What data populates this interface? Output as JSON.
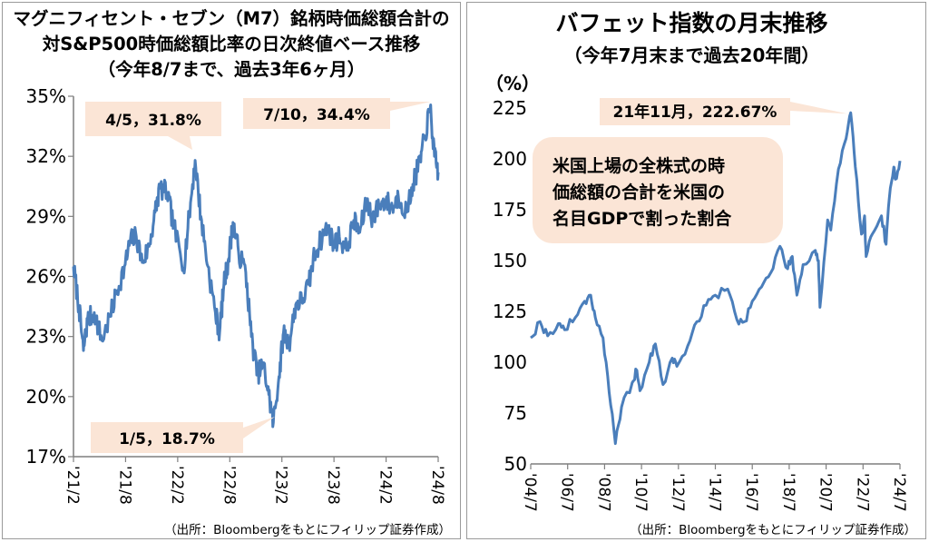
{
  "left": {
    "title_lines": [
      "マグニフィセント・セブン（M7）銘柄時価総額合計の",
      "対S&P500時価総額比率の日次終値ベース推移",
      "（今年8/7まで、過去3年6ヶ月）"
    ],
    "source": "（出所：Bloombergをもとにフィリップ証券作成）",
    "chart_data": {
      "type": "line",
      "title": "マグニフィセント・セブン（M7）銘柄時価総額合計の対S&P500時価総額比率の日次終値ベース推移",
      "subtitle": "（今年8/7まで、過去3年6ヶ月）",
      "y_unit": "%",
      "ylim": [
        17,
        35
      ],
      "yticks": [
        "35%",
        "32%",
        "29%",
        "26%",
        "23%",
        "20%",
        "17%"
      ],
      "ytick_values": [
        35,
        32,
        29,
        26,
        23,
        20,
        17
      ],
      "xticks": [
        "'21/2",
        "'21/8",
        "'22/2",
        "'22/8",
        "'23/2",
        "'23/8",
        "'24/2",
        "'24/8"
      ],
      "xlim": [
        "2021-02-01",
        "2024-08-07"
      ],
      "grid": false,
      "line_color": "#4a7ebb",
      "anchors": [
        {
          "x": "2021-02-01",
          "y": 26.5
        },
        {
          "x": "2021-02-20",
          "y": 24.5
        },
        {
          "x": "2021-03-08",
          "y": 22.3
        },
        {
          "x": "2021-03-22",
          "y": 23.8
        },
        {
          "x": "2021-04-15",
          "y": 24.2
        },
        {
          "x": "2021-05-12",
          "y": 22.8
        },
        {
          "x": "2021-06-10",
          "y": 24.0
        },
        {
          "x": "2021-07-05",
          "y": 25.3
        },
        {
          "x": "2021-08-02",
          "y": 26.6
        },
        {
          "x": "2021-08-20",
          "y": 27.8
        },
        {
          "x": "2021-09-10",
          "y": 28.0
        },
        {
          "x": "2021-10-01",
          "y": 26.7
        },
        {
          "x": "2021-10-25",
          "y": 27.5
        },
        {
          "x": "2021-11-15",
          "y": 29.2
        },
        {
          "x": "2021-12-01",
          "y": 30.4
        },
        {
          "x": "2021-12-27",
          "y": 30.2
        },
        {
          "x": "2022-01-20",
          "y": 28.5
        },
        {
          "x": "2022-02-23",
          "y": 26.4
        },
        {
          "x": "2022-03-15",
          "y": 29.0
        },
        {
          "x": "2022-04-05",
          "y": 31.8
        },
        {
          "x": "2022-04-25",
          "y": 29.0
        },
        {
          "x": "2022-05-20",
          "y": 26.5
        },
        {
          "x": "2022-06-15",
          "y": 24.2
        },
        {
          "x": "2022-06-30",
          "y": 23.2
        },
        {
          "x": "2022-07-15",
          "y": 25.6
        },
        {
          "x": "2022-08-01",
          "y": 26.9
        },
        {
          "x": "2022-08-16",
          "y": 28.7
        },
        {
          "x": "2022-09-05",
          "y": 27.2
        },
        {
          "x": "2022-09-30",
          "y": 26.2
        },
        {
          "x": "2022-10-20",
          "y": 23.0
        },
        {
          "x": "2022-11-10",
          "y": 21.1
        },
        {
          "x": "2022-12-01",
          "y": 21.6
        },
        {
          "x": "2022-12-20",
          "y": 20.1
        },
        {
          "x": "2023-01-05",
          "y": 18.7
        },
        {
          "x": "2023-01-25",
          "y": 21.0
        },
        {
          "x": "2023-02-10",
          "y": 23.2
        },
        {
          "x": "2023-03-01",
          "y": 22.6
        },
        {
          "x": "2023-03-25",
          "y": 24.6
        },
        {
          "x": "2023-04-15",
          "y": 24.8
        },
        {
          "x": "2023-05-10",
          "y": 25.6
        },
        {
          "x": "2023-05-30",
          "y": 27.1
        },
        {
          "x": "2023-06-20",
          "y": 27.8
        },
        {
          "x": "2023-07-15",
          "y": 28.5
        },
        {
          "x": "2023-08-05",
          "y": 27.6
        },
        {
          "x": "2023-08-25",
          "y": 28.0
        },
        {
          "x": "2023-09-20",
          "y": 27.3
        },
        {
          "x": "2023-10-15",
          "y": 28.8
        },
        {
          "x": "2023-11-05",
          "y": 28.2
        },
        {
          "x": "2023-11-30",
          "y": 29.8
        },
        {
          "x": "2023-12-20",
          "y": 28.9
        },
        {
          "x": "2024-01-15",
          "y": 29.6
        },
        {
          "x": "2024-02-05",
          "y": 29.8
        },
        {
          "x": "2024-02-28",
          "y": 29.4
        },
        {
          "x": "2024-03-20",
          "y": 30.0
        },
        {
          "x": "2024-04-18",
          "y": 29.2
        },
        {
          "x": "2024-05-10",
          "y": 30.6
        },
        {
          "x": "2024-06-05",
          "y": 31.8
        },
        {
          "x": "2024-06-20",
          "y": 32.9
        },
        {
          "x": "2024-07-10",
          "y": 34.4
        },
        {
          "x": "2024-07-25",
          "y": 32.0
        },
        {
          "x": "2024-08-07",
          "y": 31.2
        }
      ],
      "annotations": [
        {
          "label": "4/5，31.8%",
          "x": "2022-04-05",
          "y": 31.8
        },
        {
          "label": "7/10，34.4%",
          "x": "2024-07-10",
          "y": 34.4
        },
        {
          "label": "1/5，18.7%",
          "x": "2023-01-05",
          "y": 18.7
        }
      ]
    }
  },
  "right": {
    "title": "バフェット指数の月末推移",
    "subtitle": "（今年7月末まで過去20年間）",
    "source": "（出所：Bloombergをもとにフィリップ証券作成）",
    "note_lines": [
      "米国上場の全株式の時",
      "価総額の合計を米国の",
      "名目GDPで割った割合"
    ],
    "chart_data": {
      "type": "line",
      "title": "バフェット指数の月末推移",
      "subtitle": "（今年7月末まで過去20年間）",
      "ylabel": "（%）",
      "ylim": [
        50,
        225
      ],
      "yticks": [
        "225",
        "200",
        "175",
        "150",
        "125",
        "100",
        "75",
        "50"
      ],
      "ytick_values": [
        225,
        200,
        175,
        150,
        125,
        100,
        75,
        50
      ],
      "xticks": [
        "'04/7",
        "'06/7",
        "'08/7",
        "'10/7",
        "'12/7",
        "'14/7",
        "'16/7",
        "'18/7",
        "'20/7",
        "'22/7",
        "'24/7"
      ],
      "xlim": [
        "2004-07",
        "2024-07"
      ],
      "grid": false,
      "line_color": "#4a7ebb",
      "anchors": [
        {
          "x": "2004-07",
          "y": 112
        },
        {
          "x": "2005-01",
          "y": 120
        },
        {
          "x": "2005-06",
          "y": 113
        },
        {
          "x": "2006-01",
          "y": 119
        },
        {
          "x": "2006-05",
          "y": 116
        },
        {
          "x": "2006-12",
          "y": 122
        },
        {
          "x": "2007-06",
          "y": 130
        },
        {
          "x": "2007-10",
          "y": 133
        },
        {
          "x": "2008-01",
          "y": 122
        },
        {
          "x": "2008-06",
          "y": 112
        },
        {
          "x": "2008-10",
          "y": 85
        },
        {
          "x": "2009-02",
          "y": 60
        },
        {
          "x": "2009-06",
          "y": 78
        },
        {
          "x": "2010-01",
          "y": 90
        },
        {
          "x": "2010-04",
          "y": 96
        },
        {
          "x": "2010-06",
          "y": 86
        },
        {
          "x": "2010-12",
          "y": 100
        },
        {
          "x": "2011-04",
          "y": 109
        },
        {
          "x": "2011-09",
          "y": 89
        },
        {
          "x": "2012-03",
          "y": 102
        },
        {
          "x": "2012-06",
          "y": 98
        },
        {
          "x": "2013-01",
          "y": 108
        },
        {
          "x": "2013-07",
          "y": 120
        },
        {
          "x": "2014-01",
          "y": 128
        },
        {
          "x": "2014-07",
          "y": 133
        },
        {
          "x": "2015-03",
          "y": 136
        },
        {
          "x": "2015-09",
          "y": 121
        },
        {
          "x": "2016-02",
          "y": 120
        },
        {
          "x": "2016-07",
          "y": 130
        },
        {
          "x": "2017-01",
          "y": 137
        },
        {
          "x": "2017-07",
          "y": 144
        },
        {
          "x": "2018-01",
          "y": 157
        },
        {
          "x": "2018-06",
          "y": 146
        },
        {
          "x": "2018-09",
          "y": 152
        },
        {
          "x": "2018-12",
          "y": 133
        },
        {
          "x": "2019-04",
          "y": 148
        },
        {
          "x": "2019-12",
          "y": 155
        },
        {
          "x": "2020-02",
          "y": 150
        },
        {
          "x": "2020-03",
          "y": 127
        },
        {
          "x": "2020-08",
          "y": 170
        },
        {
          "x": "2020-10",
          "y": 165
        },
        {
          "x": "2021-03",
          "y": 195
        },
        {
          "x": "2021-08",
          "y": 210
        },
        {
          "x": "2021-11",
          "y": 222.67
        },
        {
          "x": "2022-02",
          "y": 196
        },
        {
          "x": "2022-06",
          "y": 163
        },
        {
          "x": "2022-08",
          "y": 172
        },
        {
          "x": "2022-09",
          "y": 152
        },
        {
          "x": "2023-01",
          "y": 163
        },
        {
          "x": "2023-07",
          "y": 172
        },
        {
          "x": "2023-10",
          "y": 158
        },
        {
          "x": "2023-12",
          "y": 180
        },
        {
          "x": "2024-03",
          "y": 196
        },
        {
          "x": "2024-04",
          "y": 190
        },
        {
          "x": "2024-07",
          "y": 199
        }
      ],
      "annotations": [
        {
          "label": "21年11月，222.67%",
          "x": "2021-11",
          "y": 222.67
        }
      ]
    }
  }
}
